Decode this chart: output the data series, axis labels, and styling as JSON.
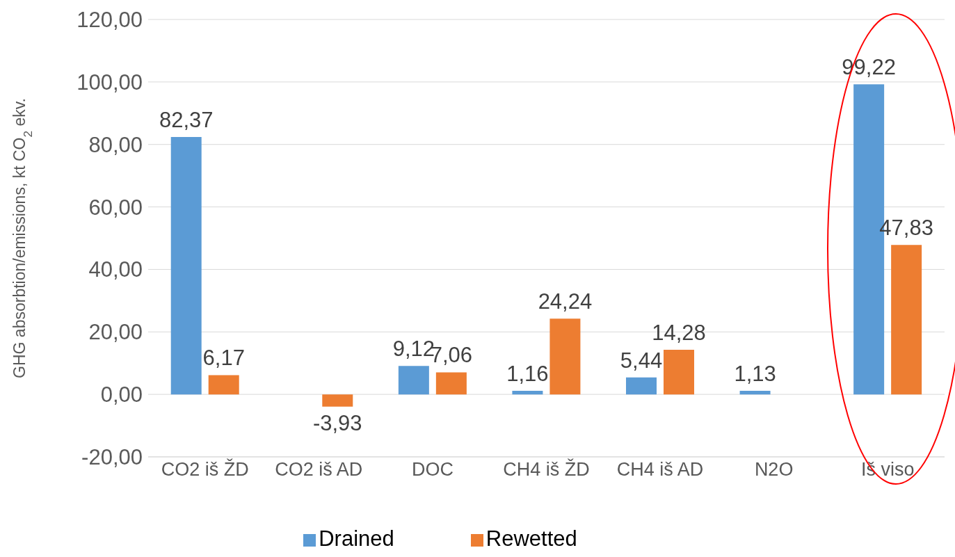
{
  "chart_data": {
    "type": "bar",
    "ylabel": "GHG absorbtion/emissions, kt CO$_{2}$ ekv.",
    "categories": [
      "CO2 iš ŽD",
      "CO2 iš AD",
      "DOC",
      "CH4 iš ŽD",
      "CH4 iš AD",
      "N2O",
      "Iš viso"
    ],
    "series": [
      {
        "name": "Drained",
        "color": "#5b9bd5",
        "values": [
          82.37,
          null,
          9.12,
          1.16,
          5.44,
          1.13,
          99.22
        ],
        "value_labels": [
          "82,37",
          null,
          "9,12",
          "1,16",
          "5,44",
          "1,13",
          "99,22"
        ]
      },
      {
        "name": "Rewetted",
        "color": "#ed7d31",
        "values": [
          6.17,
          -3.93,
          7.06,
          24.24,
          14.28,
          null,
          47.83
        ],
        "value_labels": [
          "6,17",
          "-3,93",
          "7,06",
          "24,24",
          "14,28",
          null,
          "47,83"
        ]
      }
    ],
    "ylim": [
      -20,
      120
    ],
    "yticks": [
      {
        "value": -20,
        "label": "-20,00"
      },
      {
        "value": 0,
        "label": "0,00"
      },
      {
        "value": 20,
        "label": "20,00"
      },
      {
        "value": 40,
        "label": "40,00"
      },
      {
        "value": 60,
        "label": "60,00"
      },
      {
        "value": 80,
        "label": "80,00"
      },
      {
        "value": 100,
        "label": "100,00"
      },
      {
        "value": 120,
        "label": "120,00"
      }
    ],
    "grid": "y",
    "legend": "bottom"
  }
}
